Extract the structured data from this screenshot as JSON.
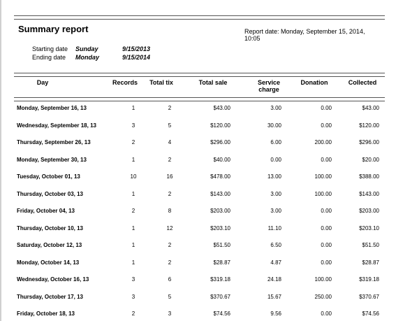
{
  "report": {
    "title": "Summary report",
    "report_date": "Report date: Monday, September 15, 2014, 10:05",
    "starting_date_label": "Starting date",
    "starting_day": "Sunday",
    "starting_date": "9/15/2013",
    "ending_date_label": "Ending date",
    "ending_day": "Monday",
    "ending_date": "9/15/2014"
  },
  "columns": {
    "day": "Day",
    "records": "Records",
    "total_tix": "Total tix",
    "total_sale": "Total sale",
    "service_charge_1": "Service",
    "service_charge_2": "charge",
    "donation": "Donation",
    "collected": "Collected"
  },
  "rows": [
    {
      "day": "Monday, September 16, 13",
      "records": "1",
      "tix": "2",
      "sale": "$43.00",
      "service": "3.00",
      "donation": "0.00",
      "collected": "$43.00"
    },
    {
      "day": "Wednesday, September 18, 13",
      "records": "3",
      "tix": "5",
      "sale": "$120.00",
      "service": "30.00",
      "donation": "0.00",
      "collected": "$120.00"
    },
    {
      "day": "Thursday, September 26, 13",
      "records": "2",
      "tix": "4",
      "sale": "$296.00",
      "service": "6.00",
      "donation": "200.00",
      "collected": "$296.00"
    },
    {
      "day": "Monday, September 30, 13",
      "records": "1",
      "tix": "2",
      "sale": "$40.00",
      "service": "0.00",
      "donation": "0.00",
      "collected": "$20.00"
    },
    {
      "day": "Tuesday, October 01, 13",
      "records": "10",
      "tix": "16",
      "sale": "$478.00",
      "service": "13.00",
      "donation": "100.00",
      "collected": "$388.00"
    },
    {
      "day": "Thursday, October 03, 13",
      "records": "1",
      "tix": "2",
      "sale": "$143.00",
      "service": "3.00",
      "donation": "100.00",
      "collected": "$143.00"
    },
    {
      "day": "Friday, October 04, 13",
      "records": "2",
      "tix": "8",
      "sale": "$203.00",
      "service": "3.00",
      "donation": "0.00",
      "collected": "$203.00"
    },
    {
      "day": "Thursday, October 10, 13",
      "records": "1",
      "tix": "12",
      "sale": "$203.10",
      "service": "11.10",
      "donation": "0.00",
      "collected": "$203.10"
    },
    {
      "day": "Saturday, October 12, 13",
      "records": "1",
      "tix": "2",
      "sale": "$51.50",
      "service": "6.50",
      "donation": "0.00",
      "collected": "$51.50"
    },
    {
      "day": "Monday, October 14, 13",
      "records": "1",
      "tix": "2",
      "sale": "$28.87",
      "service": "4.87",
      "donation": "0.00",
      "collected": "$28.87"
    },
    {
      "day": "Wednesday, October 16, 13",
      "records": "3",
      "tix": "6",
      "sale": "$319.18",
      "service": "24.18",
      "donation": "100.00",
      "collected": "$319.18"
    },
    {
      "day": "Thursday, October 17, 13",
      "records": "3",
      "tix": "5",
      "sale": "$370.67",
      "service": "15.67",
      "donation": "250.00",
      "collected": "$370.67"
    },
    {
      "day": "Friday, October 18, 13",
      "records": "2",
      "tix": "3",
      "sale": "$74.56",
      "service": "9.56",
      "donation": "0.00",
      "collected": "$74.56"
    }
  ]
}
